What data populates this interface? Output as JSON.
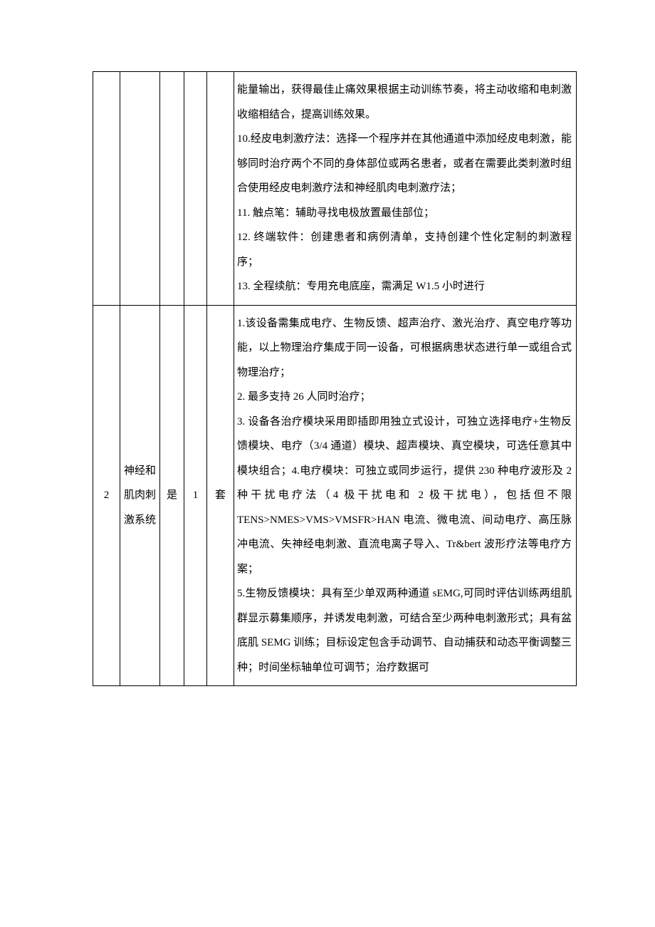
{
  "rows": [
    {
      "idx": "",
      "name": "",
      "flag": "",
      "qty": "",
      "unit": "",
      "desc": "能量输出，获得最佳止痛效果根据主动训练节奏，将主动收缩和电刺激收缩相结合，提高训练效果。\n10.经皮电刺激疗法：选择一个程序并在其他通道中添加经皮电刺激，能够同时治疗两个不同的身体部位或两名患者，或者在需要此类刺激时组合使用经皮电刺激疗法和神经肌肉电刺激疗法；\n11. 触点笔：辅助寻找电极放置最佳部位；\n12. 终端软件：创建患者和病例清单，支持创建个性化定制的刺激程序；\n13. 全程续航：专用充电底座，需满足 W1.5 小时进行"
    },
    {
      "idx": "2",
      "name": "神经和肌肉刺激系统",
      "flag": "是",
      "qty": "1",
      "unit": "套",
      "desc": "1.该设备需集成电疗、生物反馈、超声治疗、激光治疗、真空电疗等功能，以上物理治疗集成于同一设备，可根据病患状态进行单一或组合式物理治疗；\n2. 最多支持 26 人同时治疗；\n3. 设备各治疗模块采用即插即用独立式设计，可独立选择电疗+生物反馈模块、电疗（3/4 通道）模块、超声模块、真空模块，可选任意其中模块组合；4.电疗模块：可独立或同步运行，提供 230 种电疗波形及 2 种干扰电疗法（4 极干扰电和 2 极干扰电），包括但不限 TENS>NMES>VMS>VMSFR>HAN 电流、微电流、间动电疗、高压脉冲电流、失神经电刺激、直流电离子导入、Tr&bert 波形疗法等电疗方案；\n5.生物反馈模块：具有至少单双两种通道 sEMG,可同时评估训练两组肌群显示募集顺序，并诱发电刺激，可结合至少两种电刺激形式；具有盆底肌 SEMG 训练；目标设定包含手动调节、自动捕获和动态平衡调整三种；时间坐标轴单位可调节；治疗数据可"
    }
  ]
}
